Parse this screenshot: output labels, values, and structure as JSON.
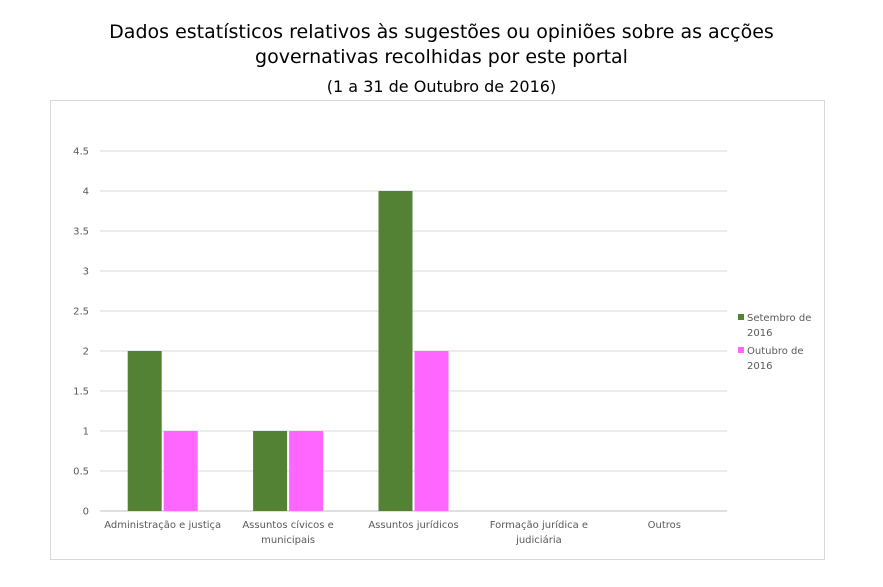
{
  "chart_data": {
    "type": "bar",
    "title_lines": [
      "Dados estatísticos relativos às sugestões ou opiniões sobre as acções",
      "governativas recolhidas por este portal"
    ],
    "subtitle": "(1 a 31 de Outubro de 2016)",
    "categories": [
      [
        "Administração e justiça"
      ],
      [
        "Assuntos cívicos e",
        "municipais"
      ],
      [
        "Assuntos jurídicos"
      ],
      [
        "Formação jurídica e",
        "judiciária"
      ],
      [
        "Outros"
      ]
    ],
    "series": [
      {
        "name_lines": [
          "Setembro de",
          "2016"
        ],
        "values": [
          2,
          1,
          4,
          0,
          0
        ],
        "color": "#548235"
      },
      {
        "name_lines": [
          "Outubro de",
          "2016"
        ],
        "values": [
          1,
          1,
          2,
          0,
          0
        ],
        "color": "#ff66ff"
      }
    ],
    "yticks": [
      "0",
      "0.5",
      "1",
      "1.5",
      "2",
      "2.5",
      "3",
      "3.5",
      "4",
      "4.5"
    ],
    "ylim": [
      0,
      4.5
    ],
    "grid": true,
    "legend_position": "right"
  }
}
